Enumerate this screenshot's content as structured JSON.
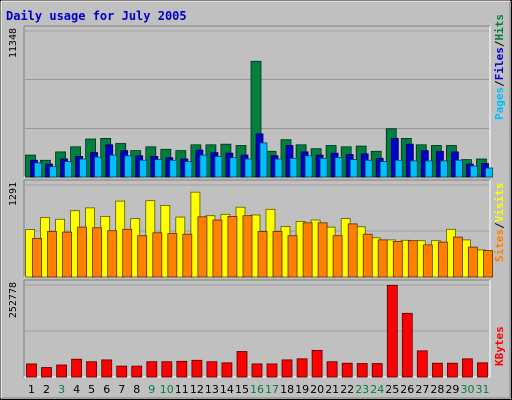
{
  "chart_data": {
    "type": "bar",
    "title": "Daily usage for July 2005",
    "categories": [
      "1",
      "2",
      "3",
      "4",
      "5",
      "6",
      "7",
      "8",
      "9",
      "10",
      "11",
      "12",
      "13",
      "14",
      "15",
      "16",
      "17",
      "18",
      "19",
      "20",
      "21",
      "22",
      "23",
      "24",
      "25",
      "26",
      "27",
      "28",
      "29",
      "30",
      "31"
    ],
    "weekend_days": [
      3,
      9,
      10,
      16,
      17,
      23,
      24,
      30,
      31
    ],
    "panels": [
      {
        "id": "hits-files-pages",
        "ymax": 11348,
        "ymax_label": "11348",
        "series": [
          {
            "name": "Hits",
            "color": "#008040",
            "values": [
              1700,
              1300,
              1950,
              2350,
              2950,
              3000,
              2600,
              2050,
              2350,
              2150,
              2050,
              2500,
              2500,
              2550,
              2450,
              8990,
              2000,
              2900,
              2500,
              2200,
              2450,
              2350,
              2400,
              2000,
              3750,
              3000,
              2500,
              2450,
              2450,
              1350,
              1400
            ]
          },
          {
            "name": "Files",
            "color": "#0000CC",
            "values": [
              1300,
              1000,
              1400,
              1600,
              1900,
              2500,
              2050,
              1650,
              1600,
              1500,
              1400,
              2100,
              1900,
              1850,
              1700,
              3350,
              1650,
              2450,
              1950,
              1700,
              1850,
              1750,
              1800,
              1450,
              3000,
              2550,
              2050,
              2000,
              1950,
              1000,
              1050
            ]
          },
          {
            "name": "Pages",
            "color": "#00BFFF",
            "values": [
              1100,
              800,
              1200,
              1400,
              1550,
              1700,
              1650,
              1300,
              1350,
              1300,
              1200,
              1700,
              1600,
              1500,
              1400,
              2650,
              1400,
              1450,
              1650,
              1450,
              1500,
              1350,
              1300,
              1200,
              1300,
              1250,
              1250,
              1250,
              1300,
              850,
              700
            ]
          }
        ]
      },
      {
        "id": "visits-sites",
        "ymax": 1291,
        "ymax_label": "1291",
        "series": [
          {
            "name": "Visits",
            "color": "#FFFF00",
            "values": [
              665,
              835,
              810,
              930,
              970,
              850,
              1065,
              820,
              1070,
              1005,
              840,
              1190,
              860,
              880,
              980,
              870,
              950,
              710,
              780,
              800,
              700,
              820,
              705,
              550,
              520,
              515,
              510,
              510,
              670,
              520,
              380
            ]
          },
          {
            "name": "Sites",
            "color": "#FF8000",
            "values": [
              540,
              640,
              630,
              700,
              690,
              650,
              670,
              580,
              620,
              610,
              600,
              845,
              800,
              850,
              860,
              640,
              640,
              580,
              760,
              760,
              580,
              745,
              600,
              520,
              500,
              510,
              450,
              490,
              560,
              420,
              370
            ]
          }
        ]
      },
      {
        "id": "kbytes",
        "ymax": 252778,
        "ymax_label": "252778",
        "series": [
          {
            "name": "KBytes",
            "color": "#FF0000",
            "values": [
              36000,
              26000,
              33000,
              49000,
              42000,
              47000,
              30000,
              30000,
              42000,
              42000,
              43000,
              46000,
              42000,
              39000,
              70000,
              36000,
              36000,
              47000,
              50000,
              73000,
              42000,
              38000,
              37000,
              37000,
              252000,
              175000,
              72000,
              38000,
              38000,
              50000,
              39000
            ]
          }
        ]
      }
    ],
    "legend_placement": "right-vertical",
    "legend_separator": "/",
    "grid": true
  }
}
